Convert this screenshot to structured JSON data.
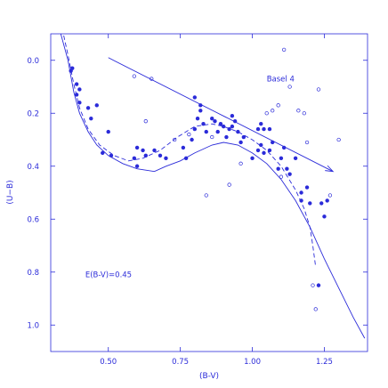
{
  "chart_data": {
    "type": "scatter",
    "title": "",
    "xlabel": "(B-V)",
    "ylabel": "(U−B)",
    "xlim": [
      0.3,
      1.4
    ],
    "ylim": [
      1.1,
      -0.1
    ],
    "y_inverted": true,
    "grid": false,
    "x_ticks": [
      0.5,
      0.75,
      1.0,
      1.25
    ],
    "x_tick_labels": [
      "0.50",
      "0.75",
      "1.00",
      "1.25"
    ],
    "y_ticks": [
      0.0,
      0.2,
      0.4,
      0.6,
      0.8,
      1.0
    ],
    "y_tick_labels": [
      "0.0",
      "0.2",
      "0.4",
      "0.6",
      "0.8",
      "1.0"
    ],
    "color": "#2b2bd9",
    "annotations": [
      {
        "text": "Basel 4",
        "x": 1.05,
        "y": 0.08
      },
      {
        "text": "E(B-V)=0.45",
        "x": 0.42,
        "y": 0.82
      }
    ],
    "reddening_vector": {
      "from": [
        0.5,
        -0.01
      ],
      "to": [
        1.28,
        0.42
      ]
    },
    "series": [
      {
        "marker": "filled",
        "points": [
          [
            0.37,
            0.04
          ],
          [
            0.375,
            0.03
          ],
          [
            0.39,
            0.09
          ],
          [
            0.39,
            0.13
          ],
          [
            0.4,
            0.11
          ],
          [
            0.4,
            0.16
          ],
          [
            0.43,
            0.18
          ],
          [
            0.44,
            0.22
          ],
          [
            0.46,
            0.17
          ],
          [
            0.48,
            0.35
          ],
          [
            0.5,
            0.27
          ],
          [
            0.51,
            0.36
          ],
          [
            0.59,
            0.37
          ],
          [
            0.6,
            0.33
          ],
          [
            0.6,
            0.4
          ],
          [
            0.62,
            0.34
          ],
          [
            0.63,
            0.36
          ],
          [
            0.66,
            0.34
          ],
          [
            0.68,
            0.36
          ],
          [
            0.7,
            0.37
          ],
          [
            0.76,
            0.33
          ],
          [
            0.77,
            0.37
          ],
          [
            0.79,
            0.3
          ],
          [
            0.8,
            0.14
          ],
          [
            0.8,
            0.26
          ],
          [
            0.81,
            0.22
          ],
          [
            0.82,
            0.17
          ],
          [
            0.82,
            0.19
          ],
          [
            0.83,
            0.24
          ],
          [
            0.84,
            0.27
          ],
          [
            0.86,
            0.22
          ],
          [
            0.87,
            0.23
          ],
          [
            0.88,
            0.27
          ],
          [
            0.89,
            0.24
          ],
          [
            0.9,
            0.25
          ],
          [
            0.91,
            0.29
          ],
          [
            0.92,
            0.26
          ],
          [
            0.93,
            0.21
          ],
          [
            0.93,
            0.25
          ],
          [
            0.94,
            0.23
          ],
          [
            0.95,
            0.27
          ],
          [
            0.96,
            0.31
          ],
          [
            0.97,
            0.29
          ],
          [
            1.0,
            0.37
          ],
          [
            1.02,
            0.26
          ],
          [
            1.02,
            0.34
          ],
          [
            1.03,
            0.24
          ],
          [
            1.03,
            0.32
          ],
          [
            1.04,
            0.26
          ],
          [
            1.04,
            0.35
          ],
          [
            1.06,
            0.26
          ],
          [
            1.06,
            0.34
          ],
          [
            1.07,
            0.31
          ],
          [
            1.09,
            0.41
          ],
          [
            1.1,
            0.37
          ],
          [
            1.11,
            0.33
          ],
          [
            1.12,
            0.41
          ],
          [
            1.13,
            0.43
          ],
          [
            1.15,
            0.37
          ],
          [
            1.17,
            0.5
          ],
          [
            1.17,
            0.53
          ],
          [
            1.19,
            0.48
          ],
          [
            1.2,
            0.54
          ],
          [
            1.23,
            0.85
          ],
          [
            1.24,
            0.54
          ],
          [
            1.25,
            0.59
          ],
          [
            1.26,
            0.53
          ]
        ]
      },
      {
        "marker": "open",
        "points": [
          [
            0.59,
            0.06
          ],
          [
            0.65,
            0.07
          ],
          [
            0.63,
            0.23
          ],
          [
            0.73,
            0.3
          ],
          [
            0.78,
            0.28
          ],
          [
            0.84,
            0.51
          ],
          [
            0.86,
            0.29
          ],
          [
            0.92,
            0.47
          ],
          [
            0.96,
            0.39
          ],
          [
            1.05,
            0.2
          ],
          [
            1.07,
            0.19
          ],
          [
            1.09,
            0.17
          ],
          [
            1.1,
            0.44
          ],
          [
            1.11,
            -0.04
          ],
          [
            1.13,
            0.1
          ],
          [
            1.16,
            0.19
          ],
          [
            1.18,
            0.2
          ],
          [
            1.19,
            0.31
          ],
          [
            1.21,
            0.85
          ],
          [
            1.22,
            0.94
          ],
          [
            1.23,
            0.11
          ],
          [
            1.27,
            0.51
          ],
          [
            1.3,
            0.3
          ]
        ]
      }
    ],
    "curves": [
      {
        "style": "solid",
        "points": [
          [
            0.33,
            -0.12
          ],
          [
            0.36,
            0.0
          ],
          [
            0.38,
            0.12
          ],
          [
            0.4,
            0.2
          ],
          [
            0.43,
            0.27
          ],
          [
            0.46,
            0.32
          ],
          [
            0.5,
            0.36
          ],
          [
            0.55,
            0.39
          ],
          [
            0.6,
            0.41
          ],
          [
            0.66,
            0.42
          ],
          [
            0.7,
            0.4
          ],
          [
            0.75,
            0.38
          ],
          [
            0.8,
            0.35
          ],
          [
            0.86,
            0.32
          ],
          [
            0.9,
            0.31
          ],
          [
            0.95,
            0.32
          ],
          [
            1.0,
            0.35
          ],
          [
            1.05,
            0.39
          ],
          [
            1.1,
            0.45
          ],
          [
            1.15,
            0.53
          ],
          [
            1.2,
            0.63
          ],
          [
            1.25,
            0.75
          ],
          [
            1.3,
            0.86
          ],
          [
            1.35,
            0.97
          ],
          [
            1.39,
            1.05
          ]
        ]
      },
      {
        "style": "dashed",
        "points": [
          [
            0.34,
            -0.12
          ],
          [
            0.36,
            -0.02
          ],
          [
            0.38,
            0.09
          ],
          [
            0.4,
            0.18
          ],
          [
            0.43,
            0.26
          ],
          [
            0.47,
            0.32
          ],
          [
            0.52,
            0.36
          ],
          [
            0.57,
            0.38
          ],
          [
            0.62,
            0.37
          ],
          [
            0.68,
            0.34
          ],
          [
            0.74,
            0.29
          ],
          [
            0.8,
            0.25
          ],
          [
            0.86,
            0.24
          ],
          [
            0.9,
            0.25
          ],
          [
            0.95,
            0.27
          ],
          [
            1.0,
            0.3
          ],
          [
            1.05,
            0.34
          ],
          [
            1.1,
            0.4
          ],
          [
            1.15,
            0.49
          ],
          [
            1.18,
            0.56
          ],
          [
            1.2,
            0.63
          ],
          [
            1.21,
            0.7
          ],
          [
            1.22,
            0.78
          ]
        ]
      }
    ]
  }
}
